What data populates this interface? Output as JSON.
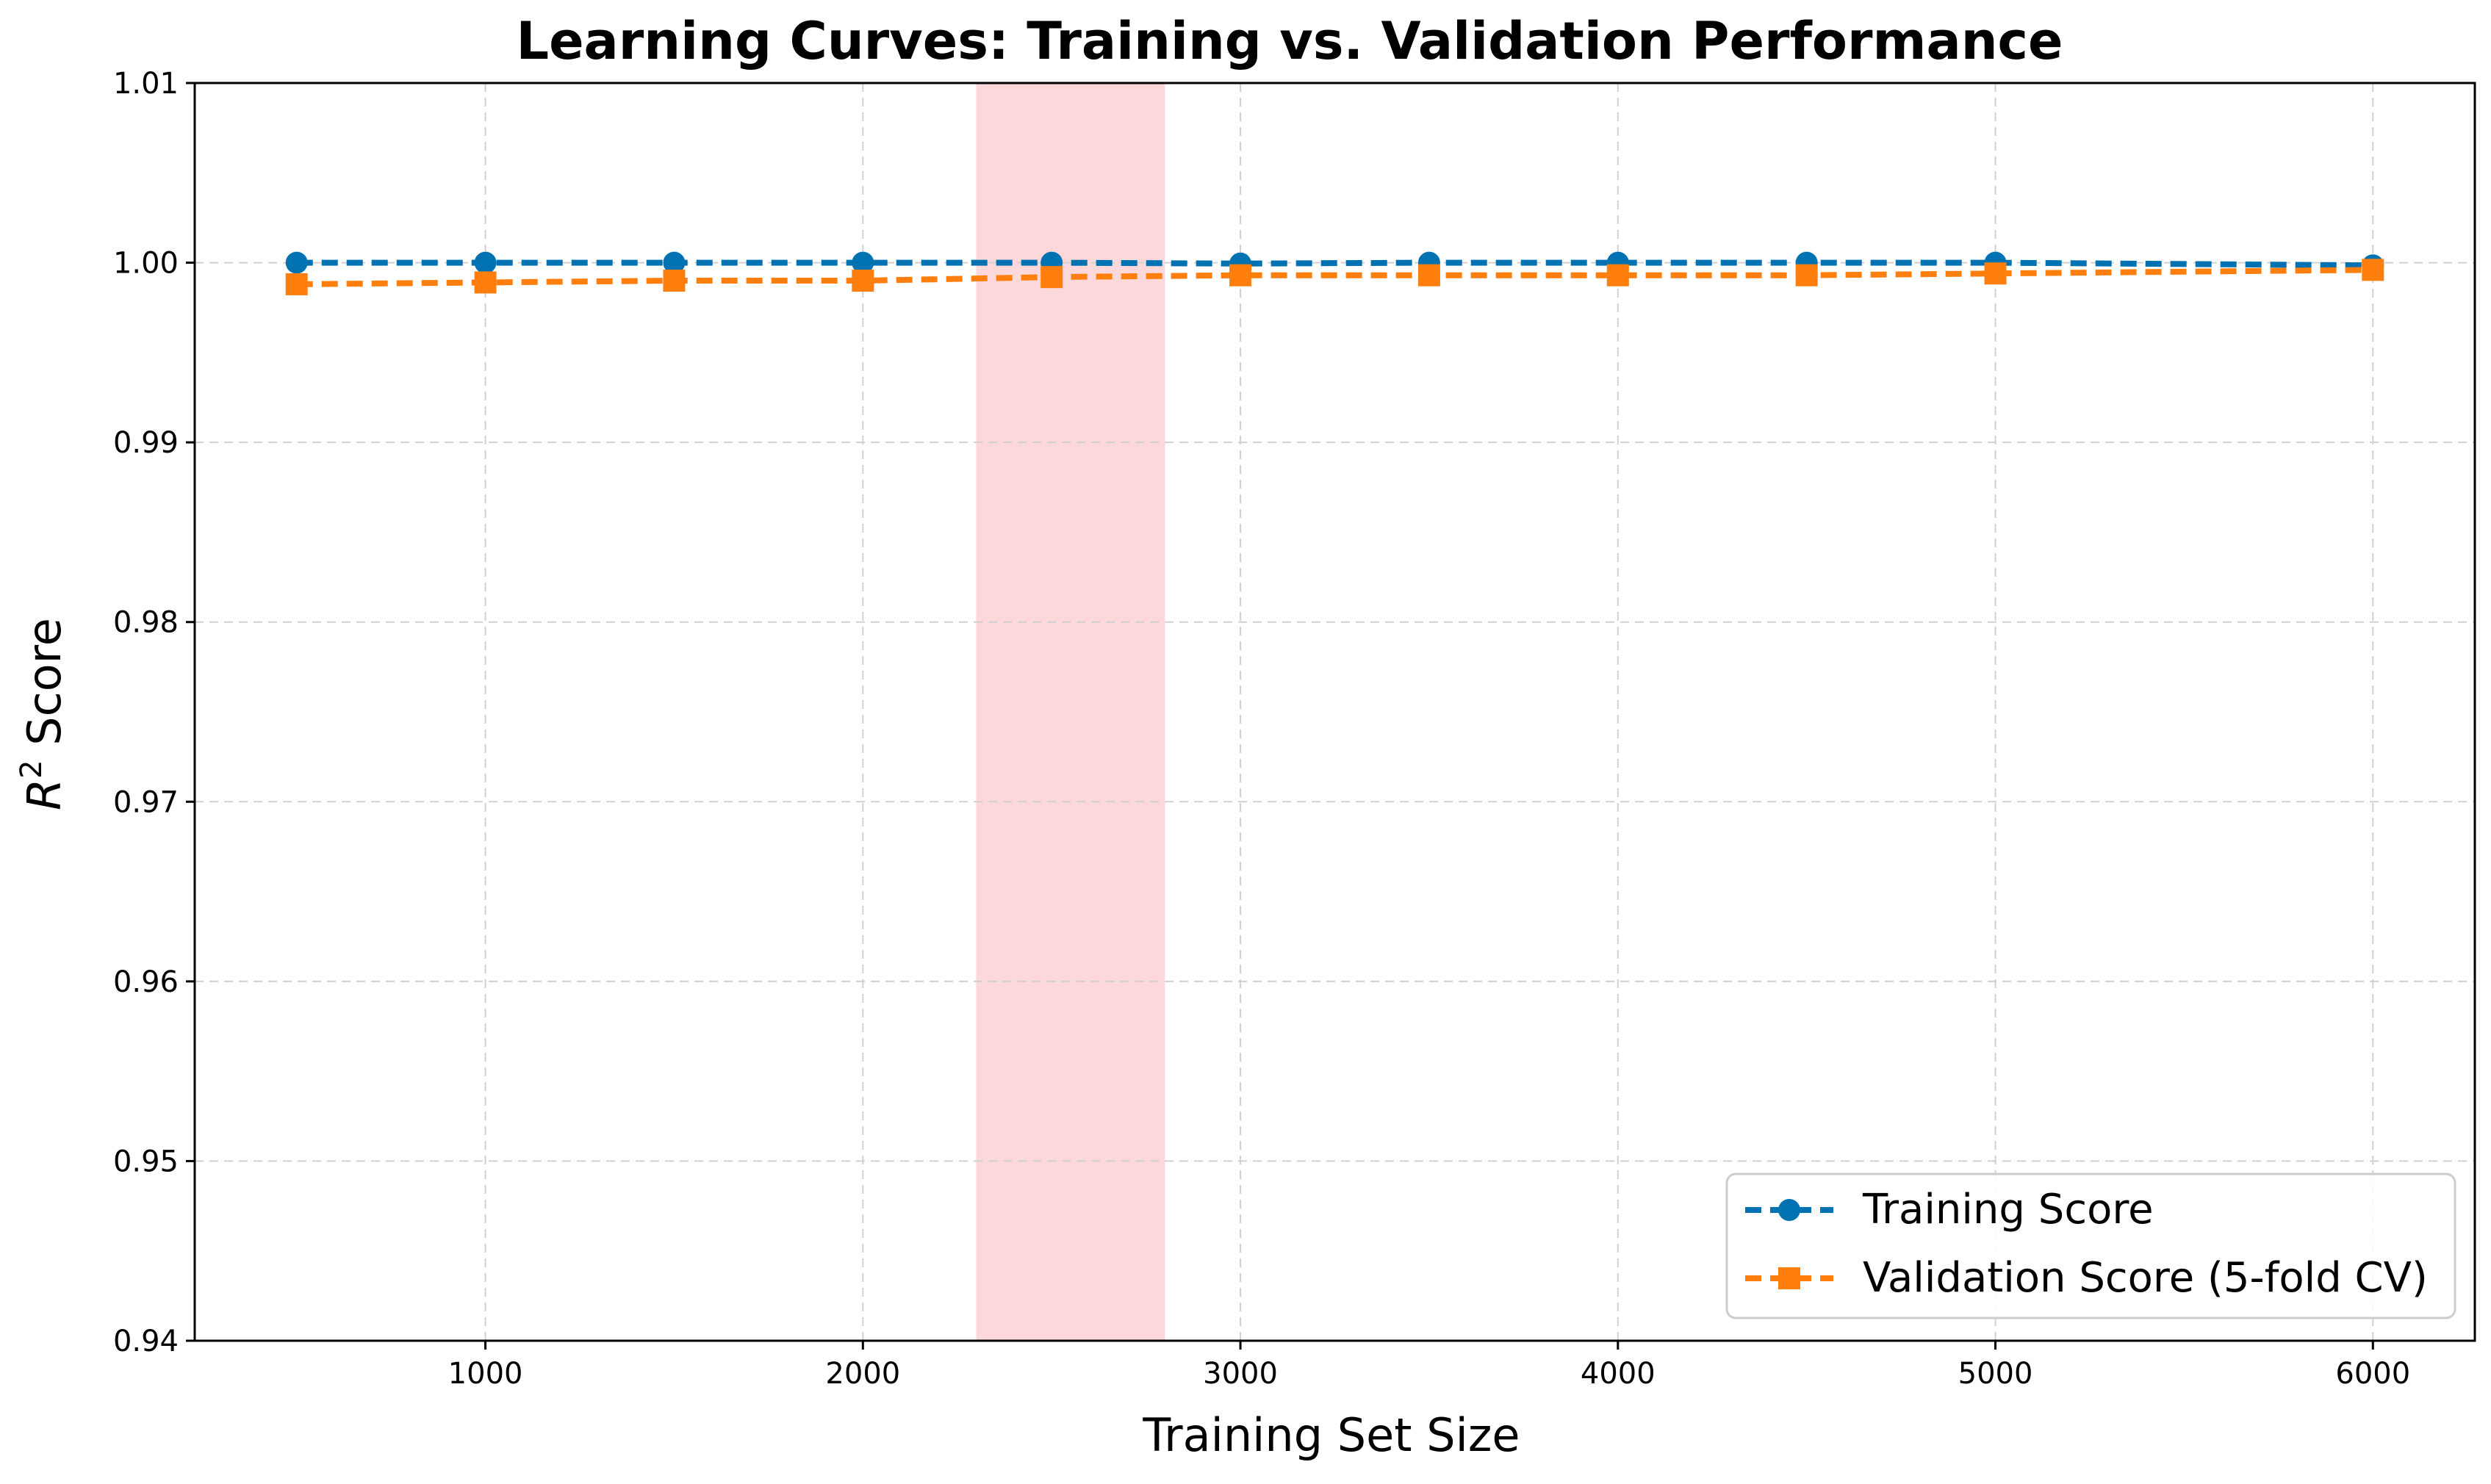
{
  "chart_data": {
    "type": "line",
    "title": "Learning Curves: Training vs. Validation Performance",
    "xlabel": "Training Set Size",
    "ylabel_base": "R",
    "ylabel_sup": "2",
    "ylabel_rest": " Score",
    "xlim": [
      230,
      6270
    ],
    "ylim": [
      0.94,
      1.01
    ],
    "x_ticks": [
      1000,
      2000,
      3000,
      4000,
      5000,
      6000
    ],
    "x_tick_labels": [
      "1000",
      "2000",
      "3000",
      "4000",
      "5000",
      "6000"
    ],
    "y_ticks": [
      0.94,
      0.95,
      0.96,
      0.97,
      0.98,
      0.99,
      1.0,
      1.01
    ],
    "y_tick_labels": [
      "0.94",
      "0.95",
      "0.96",
      "0.97",
      "0.98",
      "0.99",
      "1.00",
      "1.01"
    ],
    "grid": true,
    "legend_position": "bottom-right",
    "highlight_span": {
      "x_start": 2300,
      "x_end": 2800,
      "color": "#f9b2b6"
    },
    "x": [
      500,
      1000,
      1500,
      2000,
      2500,
      3000,
      3500,
      4000,
      4500,
      5000,
      6000
    ],
    "series": [
      {
        "name": "Training Score",
        "color": "#0072b2",
        "marker": "circle",
        "values": [
          1.0,
          1.0,
          1.0,
          1.0,
          1.0,
          0.99995,
          1.0,
          1.0,
          1.0,
          1.0,
          0.99985
        ]
      },
      {
        "name": "Validation Score (5-fold CV)",
        "color": "#ff7f0e",
        "marker": "square",
        "values": [
          0.9988,
          0.9989,
          0.999,
          0.999,
          0.9992,
          0.9993,
          0.9993,
          0.9993,
          0.9993,
          0.9994,
          0.9996
        ]
      }
    ]
  }
}
